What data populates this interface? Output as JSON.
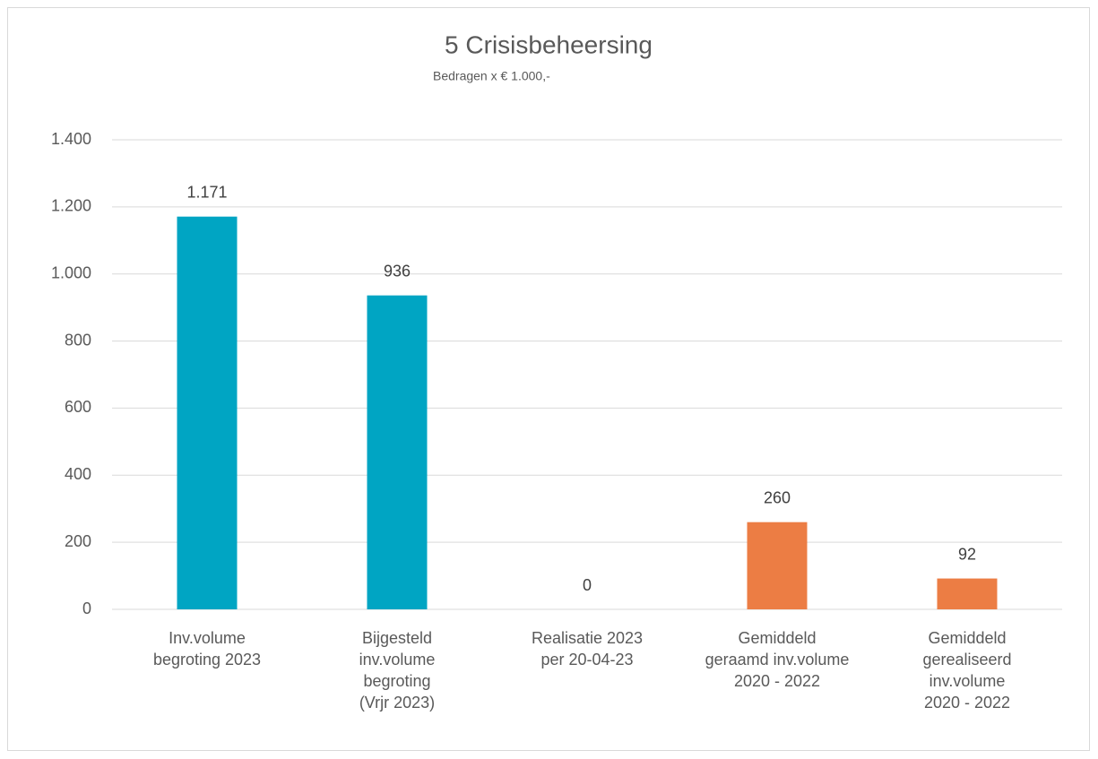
{
  "chart_data": {
    "type": "bar",
    "title": "5 Crisisbeheersing",
    "subtitle": "Bedragen x € 1.000,-",
    "categories": [
      "Inv.volume\nbegroting 2023",
      "Bijgesteld\ninv.volume\nbegroting\n(Vrjr 2023)",
      "Realisatie 2023\nper 20-04-23",
      "Gemiddeld\ngeraamd inv.volume\n2020 - 2022",
      "Gemiddeld\ngerealiseerd\ninv.volume\n2020 - 2022"
    ],
    "values": [
      1171,
      936,
      0,
      260,
      92
    ],
    "value_labels": [
      "1.171",
      "936",
      "0",
      "260",
      "92"
    ],
    "colors": [
      "#00a5c3",
      "#00a5c3",
      "#00a5c3",
      "#ec7d44",
      "#ec7d44"
    ],
    "ylim": [
      0,
      1400
    ],
    "yticks": [
      0,
      200,
      400,
      600,
      800,
      {
        "value": 1000,
        "label": "1.000"
      },
      {
        "value": 1200,
        "label": "1.200"
      },
      {
        "value": 1400,
        "label": "1.400"
      }
    ],
    "grid": true
  }
}
